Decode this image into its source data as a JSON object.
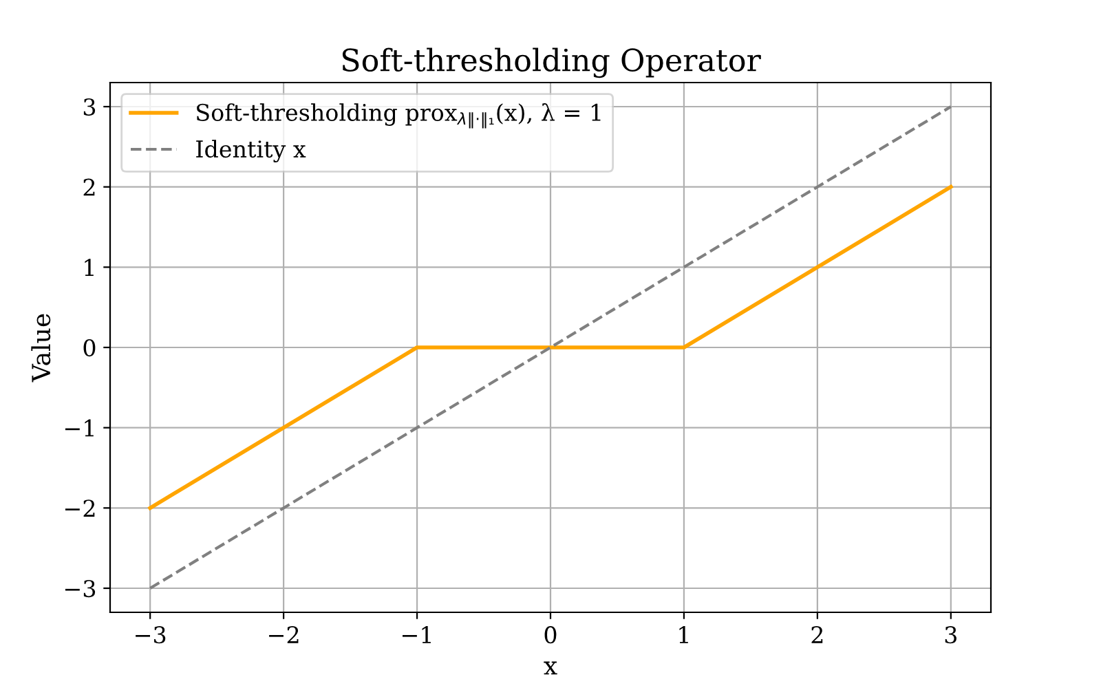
{
  "chart_data": {
    "type": "line",
    "title": "Soft-thresholding Operator",
    "xlabel": "x",
    "ylabel": "Value",
    "series": [
      {
        "name": "Soft-thresholding prox$_{λ‖·‖₁}$(x), λ = 1",
        "color": "#ffa500",
        "x": [
          -3,
          -1,
          1,
          3
        ],
        "values": [
          -2,
          0,
          0,
          2
        ],
        "line_style": "solid"
      },
      {
        "name": "Identity x",
        "color": "#808080",
        "x": [
          -3,
          3
        ],
        "values": [
          -3,
          3
        ],
        "line_style": "dashed"
      }
    ],
    "xlim": [
      -3.3,
      3.3
    ],
    "ylim": [
      -3.3,
      3.3
    ],
    "xticks": [
      {
        "value": -3,
        "label": "−3"
      },
      {
        "value": -2,
        "label": "−2"
      },
      {
        "value": -1,
        "label": "−1"
      },
      0,
      1,
      2,
      3
    ],
    "yticks": [
      {
        "value": -3,
        "label": "−3"
      },
      {
        "value": -2,
        "label": "−2"
      },
      {
        "value": -1,
        "label": "−1"
      },
      0,
      1,
      2,
      3
    ],
    "grid": true,
    "legend": "top left"
  }
}
